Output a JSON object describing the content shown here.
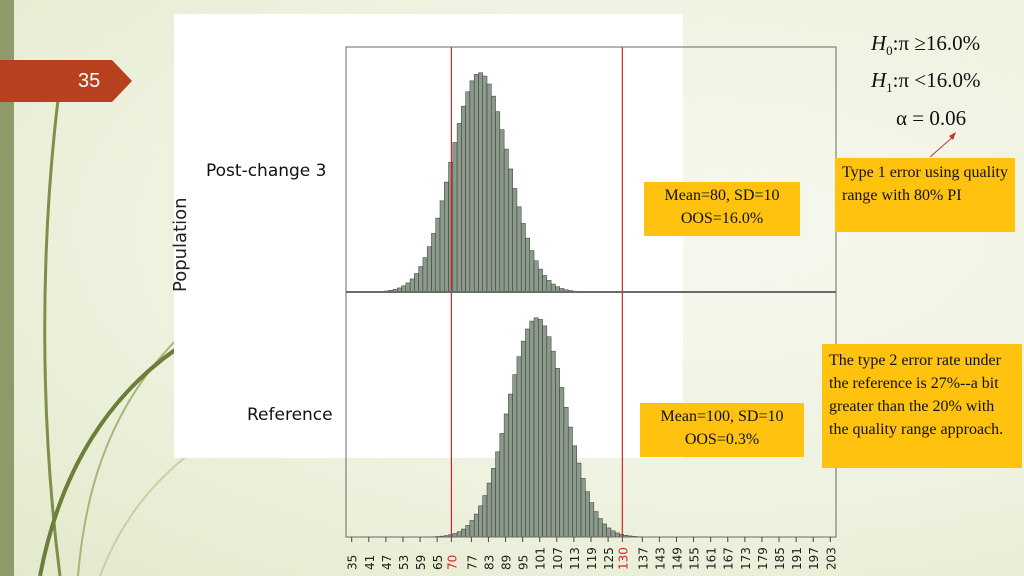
{
  "slide": {
    "number": "35"
  },
  "hypotheses": {
    "h0_var": "H",
    "h0_sub": "0",
    "h0_rest": ":π ≥16.0%",
    "h1_var": "H",
    "h1_sub": "1",
    "h1_rest": ":π <16.0%",
    "alpha": "α = 0.06"
  },
  "boxes": {
    "type1": "Type 1 error using quality range with 80% PI",
    "type2": "The type 2 error rate under the reference is 27%--a bit greater than the 20% with the quality range approach.",
    "post_stats_line1": "Mean=80, SD=10",
    "post_stats_line2": "OOS=16.0%",
    "ref_stats_line1": "Mean=100, SD=10",
    "ref_stats_line2": "OOS=0.3%"
  },
  "chart_data": {
    "type": "bar",
    "ylabel": "Population",
    "panels": [
      {
        "name": "Post-change 3",
        "mean": 80,
        "sd": 10
      },
      {
        "name": "Reference",
        "mean": 100,
        "sd": 10
      }
    ],
    "x_tick_labels": [
      "35",
      "41",
      "47",
      "53",
      "59",
      "65",
      "70",
      "77",
      "83",
      "89",
      "95",
      "101",
      "107",
      "113",
      "119",
      "125",
      "130",
      "137",
      "143",
      "149",
      "155",
      "161",
      "167",
      "173",
      "179",
      "185",
      "191",
      "197",
      "203"
    ],
    "xlim": [
      33,
      205
    ],
    "bin_width": 1.5,
    "reference_lines": [
      70,
      130
    ],
    "reference_line_color": "#d2232a",
    "bar_fill": "#8c9a8c",
    "highlight_tick_color": "#d2232a"
  },
  "colors": {
    "accent": "#b7411f",
    "box": "#ffc20e"
  }
}
